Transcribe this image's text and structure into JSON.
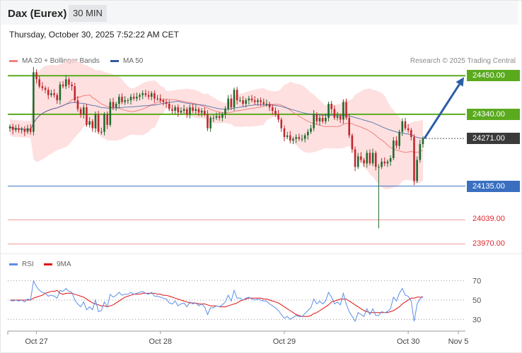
{
  "header": {
    "title": "Dax (Eurex)",
    "interval": "30 MIN"
  },
  "datetime": "Thursday, October 30, 2025 7:52:22 AM CET",
  "copyright": "Research © 2025 Trading Central",
  "colors": {
    "up": "#1f6b2e",
    "down": "#c1272d",
    "band": "#fdd5d5",
    "ma20": "#f08080",
    "ma50": "#2f5ba0",
    "resistance": "#5aaa1e",
    "support": "#3a6fc0",
    "target_low": "#ef9a9a",
    "arrow": "#2c5ea6",
    "rsi": "#5b8ee6",
    "rsi_ma": "#e01010"
  },
  "chart_data": [
    {
      "type": "candlestick",
      "legend": [
        {
          "name": "MA 20 + Bollinger Bands",
          "color": "#f08080"
        },
        {
          "name": "MA 50",
          "color": "#2f5ba0"
        }
      ],
      "legend_position": "top-left",
      "ylim": [
        23945,
        24505
      ],
      "x_ticks": [
        {
          "label": "Oct 27",
          "index": 9
        },
        {
          "label": "Oct 28",
          "index": 51
        },
        {
          "label": "Oct 29",
          "index": 93
        },
        {
          "label": "Oct 30",
          "index": 135
        },
        {
          "label": "Nov 5",
          "index": 152
        }
      ],
      "last_price": {
        "label": "24271.00",
        "value": 24271
      },
      "levels": [
        {
          "label": "24450.00",
          "value": 24450,
          "kind": "resistance"
        },
        {
          "label": "24340.00",
          "value": 24340,
          "kind": "resistance"
        },
        {
          "label": "24135.00",
          "value": 24135,
          "kind": "support"
        },
        {
          "label": "24039.00",
          "value": 24039,
          "kind": "target"
        },
        {
          "label": "23970.00",
          "value": 23970,
          "kind": "target"
        }
      ],
      "forecast_arrow": {
        "from": 24271,
        "to": 24450
      },
      "closes": [
        24305,
        24295,
        24300,
        24295,
        24298,
        24290,
        24300,
        24290,
        24460,
        24440,
        24420,
        24415,
        24410,
        24395,
        24400,
        24395,
        24380,
        24425,
        24420,
        24440,
        24425,
        24420,
        24380,
        24355,
        24340,
        24360,
        24310,
        24320,
        24300,
        24340,
        24290,
        24290,
        24340,
        24310,
        24375,
        24360,
        24370,
        24390,
        24375,
        24380,
        24380,
        24390,
        24385,
        24390,
        24395,
        24400,
        24395,
        24390,
        24400,
        24385,
        24385,
        24380,
        24375,
        24370,
        24355,
        24350,
        24360,
        24345,
        24350,
        24355,
        24340,
        24360,
        24350,
        24355,
        24345,
        24350,
        24340,
        24300,
        24330,
        24330,
        24335,
        24330,
        24340,
        24355,
        24385,
        24360,
        24410,
        24380,
        24380,
        24370,
        24380,
        24385,
        24380,
        24375,
        24380,
        24375,
        24370,
        24370,
        24360,
        24350,
        24340,
        24325,
        24300,
        24275,
        24280,
        24265,
        24270,
        24275,
        24270,
        24270,
        24280,
        24290,
        24300,
        24340,
        24320,
        24330,
        24320,
        24330,
        24370,
        24355,
        24330,
        24335,
        24325,
        24375,
        24330,
        24280,
        24240,
        24190,
        24220,
        24210,
        24200,
        24230,
        24200,
        24230,
        24190,
        24190,
        24205,
        24200,
        24205,
        24215,
        24265,
        24250,
        24290,
        24320,
        24300,
        24295,
        24275,
        24150,
        24210,
        24255,
        24271
      ],
      "rsi": {
        "legend": [
          {
            "name": "RSI",
            "color": "#5b8ee6"
          },
          {
            "name": "9MA",
            "color": "#e01010"
          }
        ],
        "ylim": [
          20,
          80
        ],
        "ticks": [
          {
            "label": "70",
            "value": 70
          },
          {
            "label": "50",
            "value": 50
          },
          {
            "label": "30",
            "value": 30
          }
        ],
        "rsi_values": [
          50,
          49,
          50,
          49,
          50,
          48,
          51,
          50,
          70,
          64,
          60,
          58,
          57,
          54,
          55,
          54,
          52,
          60,
          59,
          62,
          59,
          58,
          50,
          46,
          43,
          48,
          40,
          43,
          40,
          50,
          38,
          39,
          48,
          43,
          56,
          53,
          55,
          58,
          55,
          56,
          56,
          58,
          56,
          57,
          58,
          59,
          57,
          56,
          58,
          54,
          54,
          53,
          52,
          51,
          47,
          46,
          49,
          44,
          46,
          47,
          43,
          48,
          46,
          47,
          44,
          46,
          43,
          35,
          42,
          42,
          44,
          43,
          45,
          48,
          55,
          49,
          60,
          52,
          52,
          50,
          52,
          53,
          51,
          50,
          51,
          50,
          49,
          49,
          46,
          44,
          42,
          39,
          35,
          31,
          33,
          30,
          32,
          34,
          33,
          33,
          36,
          39,
          42,
          51,
          46,
          49,
          46,
          49,
          58,
          53,
          46,
          48,
          45,
          57,
          46,
          38,
          33,
          28,
          37,
          35,
          33,
          41,
          35,
          41,
          34,
          34,
          38,
          37,
          38,
          41,
          53,
          49,
          57,
          62,
          55,
          54,
          49,
          28,
          46,
          51,
          54
        ],
        "ma_values": [
          50,
          50,
          50,
          50,
          50,
          50,
          50,
          50,
          52,
          53,
          54,
          55,
          57,
          58,
          59,
          59,
          60,
          57,
          56,
          57,
          57,
          57,
          56,
          55,
          54,
          53,
          51,
          49,
          47,
          46,
          45,
          44,
          44,
          43,
          44,
          45,
          47,
          49,
          51,
          53,
          54,
          55,
          56,
          56,
          56,
          57,
          57,
          57,
          57,
          57,
          56,
          56,
          55,
          55,
          54,
          53,
          52,
          51,
          50,
          49,
          48,
          47,
          47,
          47,
          46,
          46,
          46,
          45,
          44,
          44,
          44,
          43,
          43,
          43,
          44,
          45,
          46,
          47,
          49,
          50,
          51,
          52,
          52,
          52,
          52,
          52,
          51,
          51,
          50,
          49,
          48,
          47,
          45,
          43,
          41,
          39,
          37,
          35,
          34,
          33,
          33,
          33,
          34,
          36,
          37,
          39,
          41,
          43,
          45,
          48,
          49,
          50,
          51,
          51,
          51,
          49,
          47,
          45,
          43,
          41,
          39,
          38,
          37,
          37,
          37,
          37,
          37,
          37,
          37,
          38,
          39,
          41,
          43,
          46,
          48,
          50,
          52,
          52,
          53,
          53,
          53
        ]
      }
    }
  ]
}
